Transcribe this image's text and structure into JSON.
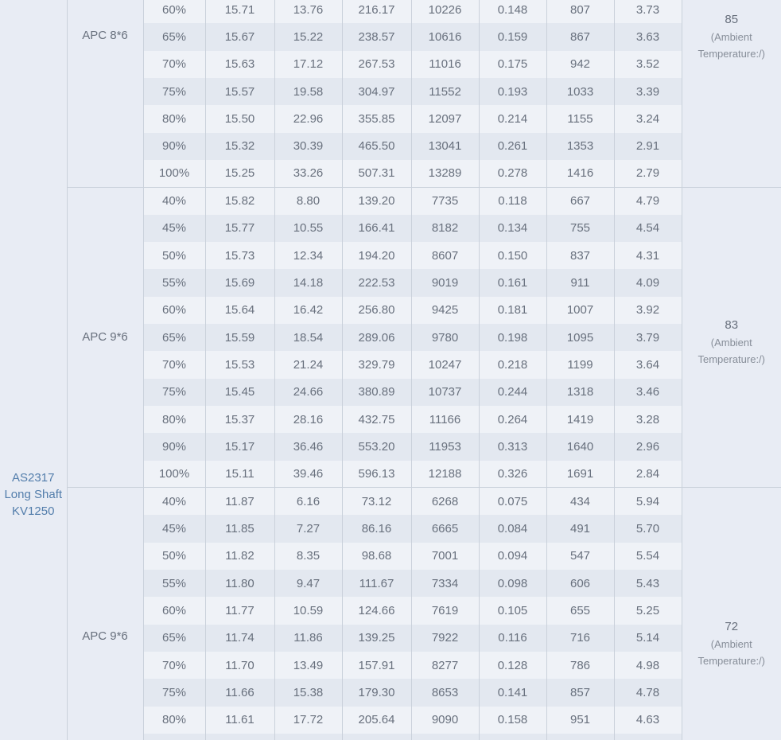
{
  "colors": {
    "page_bg": "#e9edf3",
    "row_light": "#eff2f7",
    "row_dark": "#e3e8f0",
    "side_cell": "#e8ecf4",
    "border": "#cad1db",
    "text": "#68707d",
    "note_text": "#878e99",
    "motor_link": "#527dab"
  },
  "table": {
    "motor": {
      "label": "AS2317 Long Shaft KV1250"
    },
    "clipped_partial_row": true,
    "sections": [
      {
        "prop": "APC 8*6",
        "temperature": "85",
        "temperature_note": "(Ambient Temperature:/)",
        "rows": [
          {
            "throttle": "60%",
            "values": [
              "15.71",
              "13.76",
              "216.17",
              "10226",
              "0.148",
              "807",
              "3.73"
            ]
          },
          {
            "throttle": "65%",
            "values": [
              "15.67",
              "15.22",
              "238.57",
              "10616",
              "0.159",
              "867",
              "3.63"
            ]
          },
          {
            "throttle": "70%",
            "values": [
              "15.63",
              "17.12",
              "267.53",
              "11016",
              "0.175",
              "942",
              "3.52"
            ]
          },
          {
            "throttle": "75%",
            "values": [
              "15.57",
              "19.58",
              "304.97",
              "11552",
              "0.193",
              "1033",
              "3.39"
            ]
          },
          {
            "throttle": "80%",
            "values": [
              "15.50",
              "22.96",
              "355.85",
              "12097",
              "0.214",
              "1155",
              "3.24"
            ]
          },
          {
            "throttle": "90%",
            "values": [
              "15.32",
              "30.39",
              "465.50",
              "13041",
              "0.261",
              "1353",
              "2.91"
            ]
          },
          {
            "throttle": "100%",
            "values": [
              "15.25",
              "33.26",
              "507.31",
              "13289",
              "0.278",
              "1416",
              "2.79"
            ]
          }
        ]
      },
      {
        "prop": "APC 9*6",
        "temperature": "83",
        "temperature_note": "(Ambient Temperature:/)",
        "rows": [
          {
            "throttle": "40%",
            "values": [
              "15.82",
              "8.80",
              "139.20",
              "7735",
              "0.118",
              "667",
              "4.79"
            ]
          },
          {
            "throttle": "45%",
            "values": [
              "15.77",
              "10.55",
              "166.41",
              "8182",
              "0.134",
              "755",
              "4.54"
            ]
          },
          {
            "throttle": "50%",
            "values": [
              "15.73",
              "12.34",
              "194.20",
              "8607",
              "0.150",
              "837",
              "4.31"
            ]
          },
          {
            "throttle": "55%",
            "values": [
              "15.69",
              "14.18",
              "222.53",
              "9019",
              "0.161",
              "911",
              "4.09"
            ]
          },
          {
            "throttle": "60%",
            "values": [
              "15.64",
              "16.42",
              "256.80",
              "9425",
              "0.181",
              "1007",
              "3.92"
            ]
          },
          {
            "throttle": "65%",
            "values": [
              "15.59",
              "18.54",
              "289.06",
              "9780",
              "0.198",
              "1095",
              "3.79"
            ]
          },
          {
            "throttle": "70%",
            "values": [
              "15.53",
              "21.24",
              "329.79",
              "10247",
              "0.218",
              "1199",
              "3.64"
            ]
          },
          {
            "throttle": "75%",
            "values": [
              "15.45",
              "24.66",
              "380.89",
              "10737",
              "0.244",
              "1318",
              "3.46"
            ]
          },
          {
            "throttle": "80%",
            "values": [
              "15.37",
              "28.16",
              "432.75",
              "11166",
              "0.264",
              "1419",
              "3.28"
            ]
          },
          {
            "throttle": "90%",
            "values": [
              "15.17",
              "36.46",
              "553.20",
              "11953",
              "0.313",
              "1640",
              "2.96"
            ]
          },
          {
            "throttle": "100%",
            "values": [
              "15.11",
              "39.46",
              "596.13",
              "12188",
              "0.326",
              "1691",
              "2.84"
            ]
          }
        ]
      },
      {
        "prop": "APC 9*6",
        "temperature": "72",
        "temperature_note": "(Ambient Temperature:/)",
        "rows": [
          {
            "throttle": "40%",
            "values": [
              "11.87",
              "6.16",
              "73.12",
              "6268",
              "0.075",
              "434",
              "5.94"
            ]
          },
          {
            "throttle": "45%",
            "values": [
              "11.85",
              "7.27",
              "86.16",
              "6665",
              "0.084",
              "491",
              "5.70"
            ]
          },
          {
            "throttle": "50%",
            "values": [
              "11.82",
              "8.35",
              "98.68",
              "7001",
              "0.094",
              "547",
              "5.54"
            ]
          },
          {
            "throttle": "55%",
            "values": [
              "11.80",
              "9.47",
              "111.67",
              "7334",
              "0.098",
              "606",
              "5.43"
            ]
          },
          {
            "throttle": "60%",
            "values": [
              "11.77",
              "10.59",
              "124.66",
              "7619",
              "0.105",
              "655",
              "5.25"
            ]
          },
          {
            "throttle": "65%",
            "values": [
              "11.74",
              "11.86",
              "139.25",
              "7922",
              "0.116",
              "716",
              "5.14"
            ]
          },
          {
            "throttle": "70%",
            "values": [
              "11.70",
              "13.49",
              "157.91",
              "8277",
              "0.128",
              "786",
              "4.98"
            ]
          },
          {
            "throttle": "75%",
            "values": [
              "11.66",
              "15.38",
              "179.30",
              "8653",
              "0.141",
              "857",
              "4.78"
            ]
          },
          {
            "throttle": "80%",
            "values": [
              "11.61",
              "17.72",
              "205.64",
              "9090",
              "0.158",
              "951",
              "4.63"
            ]
          }
        ]
      }
    ]
  }
}
